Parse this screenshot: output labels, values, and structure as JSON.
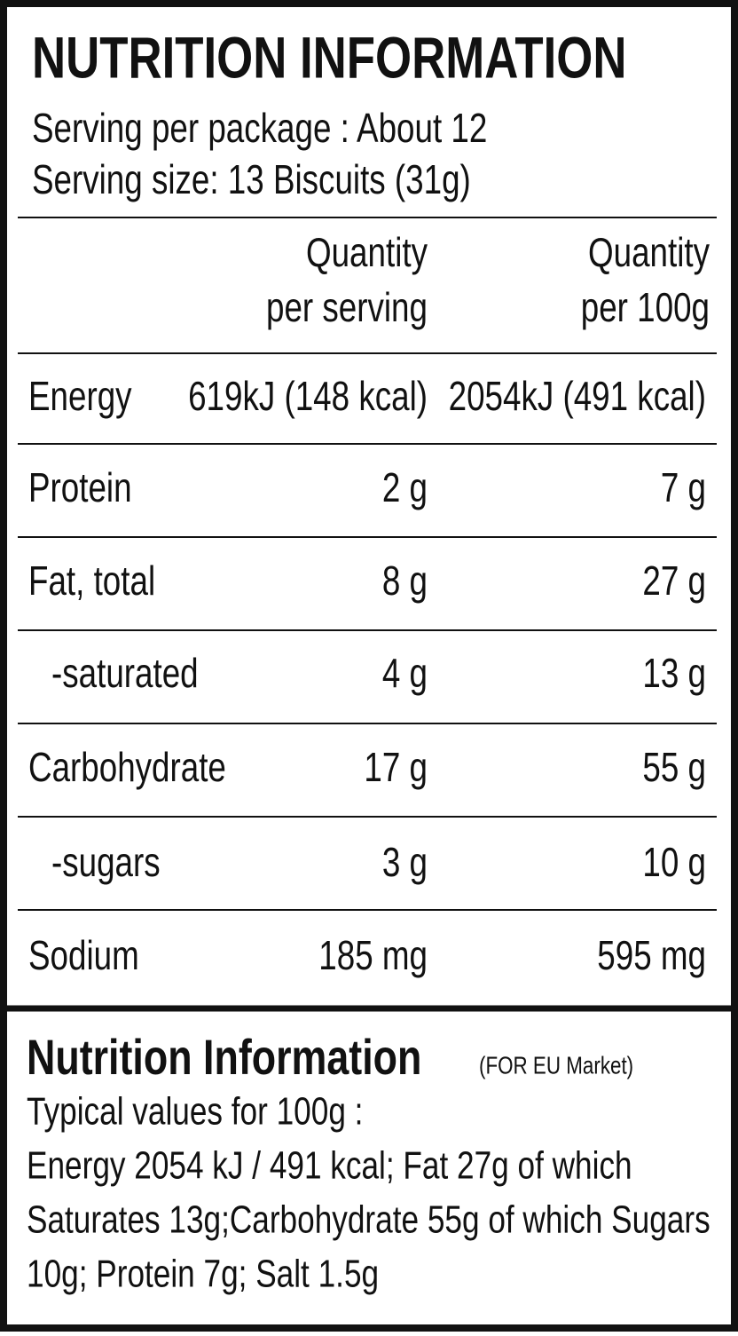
{
  "top": {
    "title": "NUTRITION INFORMATION",
    "lines": [
      "Serving per package : About 12",
      "Serving size: 13 Biscuits (31g)"
    ]
  },
  "table": {
    "columns": [
      [
        "Quantity",
        "per serving"
      ],
      [
        "Quantity",
        "per 100g"
      ]
    ],
    "rows": [
      [
        "Energy",
        "619kJ (148 kcal)",
        "2054kJ (491 kcal)"
      ],
      [
        "Protein",
        "2 g",
        "7 g"
      ],
      [
        "Fat, total",
        "8 g",
        "27 g"
      ],
      [
        "-saturated",
        "4 g",
        "13 g"
      ],
      [
        "Carbohydrate",
        "17 g",
        "55 g"
      ],
      [
        "-sugars",
        "3 g",
        "10 g"
      ],
      [
        "Sodium",
        "185 mg",
        "595 mg"
      ]
    ]
  },
  "bottom": {
    "title": "Nutrition Information",
    "note": "(FOR EU Market)",
    "lines": [
      "Typical values for 100g :",
      "Energy 2054 kJ / 491 kcal; Fat 27g of which",
      "Saturates 13g;Carbohydrate 55g of which Sugars",
      "10g; Protein 7g; Salt 1.5g"
    ]
  }
}
